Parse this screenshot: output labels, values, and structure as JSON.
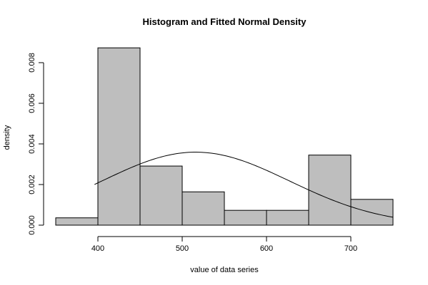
{
  "chart_data": {
    "type": "histogram",
    "title": "Histogram and Fitted Normal Density",
    "xlabel": "value of data series",
    "ylabel": "density",
    "bars": [
      {
        "x0": 350,
        "x1": 400,
        "density": 0.00036
      },
      {
        "x0": 400,
        "x1": 450,
        "density": 0.00873
      },
      {
        "x0": 450,
        "x1": 500,
        "density": 0.00291
      },
      {
        "x0": 500,
        "x1": 550,
        "density": 0.00164
      },
      {
        "x0": 550,
        "x1": 600,
        "density": 0.00073
      },
      {
        "x0": 600,
        "x1": 650,
        "density": 0.00073
      },
      {
        "x0": 650,
        "x1": 700,
        "density": 0.00345
      },
      {
        "x0": 700,
        "x1": 750,
        "density": 0.00127
      }
    ],
    "fitted_normal": {
      "mean": 516,
      "sd": 111,
      "x_range": [
        396,
        750
      ]
    },
    "xlim": [
      350,
      750
    ],
    "ylim": [
      0,
      0.0087
    ],
    "xticks": [
      400,
      500,
      600,
      700
    ],
    "xtick_labels": [
      "400",
      "500",
      "600",
      "700"
    ],
    "yticks": [
      0,
      0.002,
      0.004,
      0.006,
      0.008
    ],
    "ytick_labels": [
      "0.000",
      "0.002",
      "0.004",
      "0.006",
      "0.008"
    ],
    "bar_color": "#bebebe",
    "line_color": "#000000",
    "grid": false
  }
}
